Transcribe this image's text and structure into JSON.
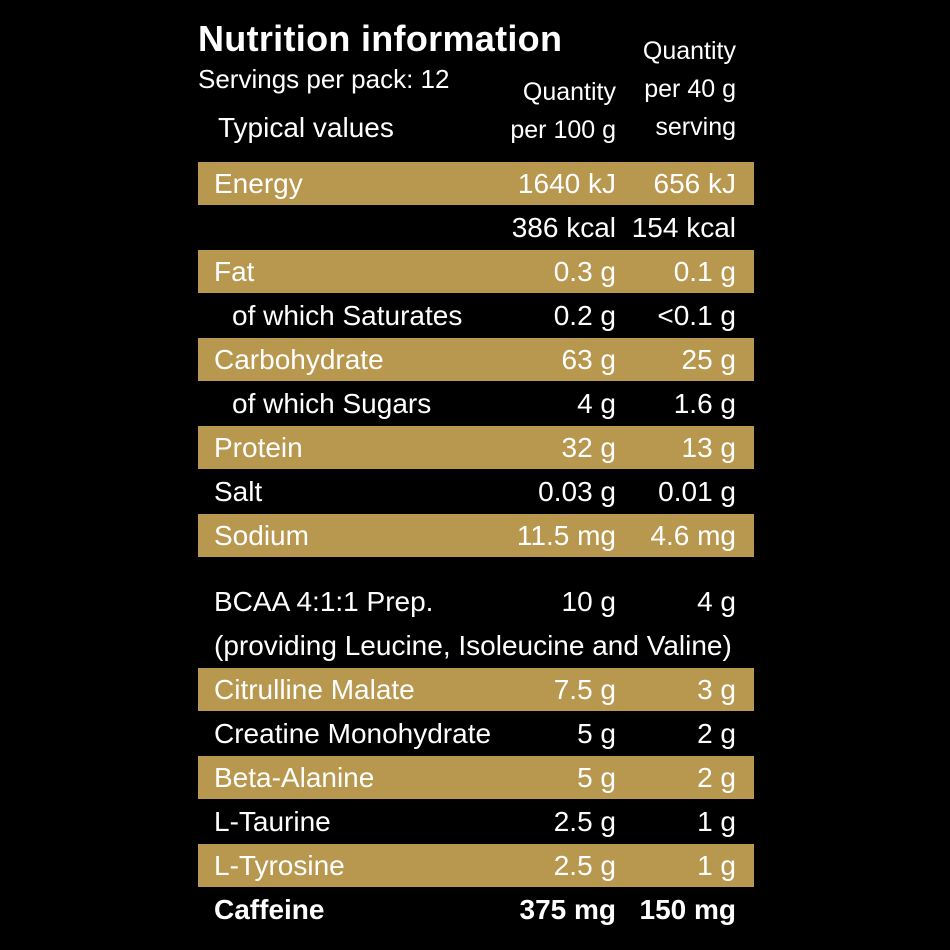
{
  "header": {
    "title": "Nutrition information",
    "servings": "Servings per pack: 12",
    "typical": "Typical values",
    "col1_line1": "Quantity",
    "col1_line2": "per 100 g",
    "col2_line1": "Quantity",
    "col2_line2": "per 40 g",
    "col2_line3": "serving"
  },
  "rows": [
    {
      "label": "Energy",
      "v1": "1640 kJ",
      "v2": "656 kJ"
    },
    {
      "label": "",
      "v1": "386 kcal",
      "v2": "154 kcal"
    },
    {
      "label": "Fat",
      "v1": "0.3 g",
      "v2": "0.1 g"
    },
    {
      "label": "of which Saturates",
      "v1": "0.2 g",
      "v2": "<0.1 g"
    },
    {
      "label": "Carbohydrate",
      "v1": "63 g",
      "v2": "25 g"
    },
    {
      "label": "of which Sugars",
      "v1": "4 g",
      "v2": "1.6 g"
    },
    {
      "label": "Protein",
      "v1": "32 g",
      "v2": "13 g"
    },
    {
      "label": "Salt",
      "v1": "0.03 g",
      "v2": "0.01 g"
    },
    {
      "label": "Sodium",
      "v1": "11.5 mg",
      "v2": "4.6 mg"
    },
    {
      "label": "BCAA 4:1:1 Prep.",
      "v1": "10 g",
      "v2": "4 g"
    },
    {
      "label": "Citrulline Malate",
      "v1": "7.5 g",
      "v2": "3 g"
    },
    {
      "label": "Creatine Monohydrate",
      "v1": "5 g",
      "v2": "2 g"
    },
    {
      "label": "Beta-Alanine",
      "v1": "5 g",
      "v2": "2 g"
    },
    {
      "label": "L-Taurine",
      "v1": "2.5 g",
      "v2": "1 g"
    },
    {
      "label": "L-Tyrosine",
      "v1": "2.5 g",
      "v2": "1 g"
    },
    {
      "label": "Caffeine",
      "v1": "375 mg",
      "v2": "150 mg"
    }
  ],
  "bcaa_note": "(providing Leucine, Isoleucine and Valine)",
  "colors": {
    "background": "#000000",
    "band": "#b8974e",
    "text": "#ffffff"
  }
}
